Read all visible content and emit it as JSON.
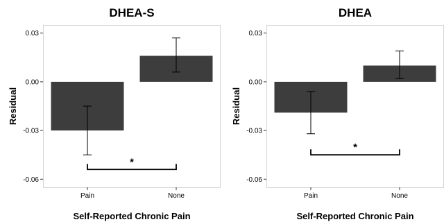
{
  "chart_data": [
    {
      "type": "bar",
      "title": "DHEA-S",
      "xlabel": "Self-Reported Chronic Pain",
      "ylabel": "Residual",
      "categories": [
        "Pain",
        "None"
      ],
      "values": [
        -0.03,
        0.016
      ],
      "error_low": [
        -0.045,
        0.006
      ],
      "error_high": [
        -0.015,
        0.027
      ],
      "ylim": [
        -0.065,
        0.035
      ],
      "yticks": [
        0.03,
        0.0,
        -0.03,
        -0.06
      ],
      "ytick_labels": [
        "0.03",
        "0.00",
        "-0.03",
        "-0.06"
      ],
      "significance": {
        "between": [
          "Pain",
          "None"
        ],
        "at": -0.054,
        "label": "*"
      },
      "grid": false,
      "bar_color": "#3d3d3d",
      "frame_color": "#d4d4d4"
    },
    {
      "type": "bar",
      "title": "DHEA",
      "xlabel": "Self-Reported Chronic Pain",
      "ylabel": "Residual",
      "categories": [
        "Pain",
        "None"
      ],
      "values": [
        -0.019,
        0.01
      ],
      "error_low": [
        -0.032,
        0.002
      ],
      "error_high": [
        -0.006,
        0.019
      ],
      "ylim": [
        -0.065,
        0.035
      ],
      "yticks": [
        0.03,
        0.0,
        -0.03,
        -0.06
      ],
      "ytick_labels": [
        "0.03",
        "0.00",
        "-0.03",
        "-0.06"
      ],
      "significance": {
        "between": [
          "Pain",
          "None"
        ],
        "at": -0.045,
        "label": "*"
      },
      "grid": false,
      "bar_color": "#3d3d3d",
      "frame_color": "#d4d4d4"
    }
  ]
}
